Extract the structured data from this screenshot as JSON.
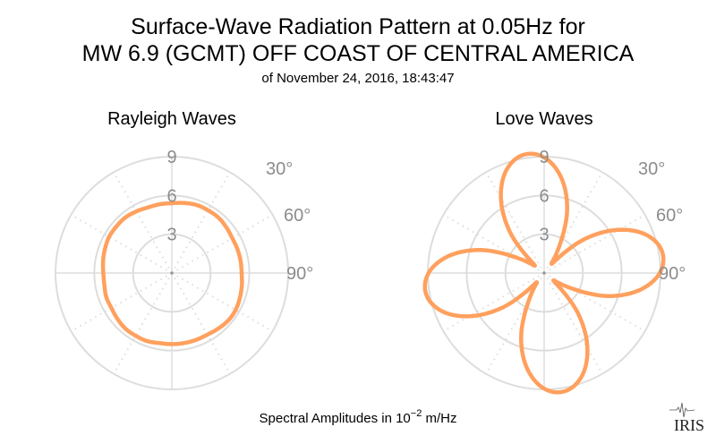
{
  "title_line1": "Surface-Wave Radiation Pattern at 0.05Hz for",
  "title_line2": "MW 6.9 (GCMT) OFF COAST OF CENTRAL AMERICA",
  "subtitle": "of November 24, 2016, 18:43:47",
  "footer": {
    "prefix": "Spectral Amplitudes in 10",
    "exponent": "−2",
    "suffix": " m/Hz"
  },
  "logo_text": "IRIS",
  "colors": {
    "trace": "#FFA05E",
    "grid": "#dddddd",
    "tick_text": "#8c8c8c"
  },
  "chart_data": [
    {
      "type": "polar-line",
      "title": "Rayleigh Waves",
      "radial_ticks": [
        "3",
        "6",
        "9"
      ],
      "radial_range": [
        0,
        9
      ],
      "angular_ticks": [
        "30°",
        "60°",
        "90°"
      ],
      "angle_direction": "clockwise from top",
      "azimuth_deg": [
        0,
        10,
        20,
        30,
        40,
        50,
        60,
        70,
        80,
        90,
        100,
        110,
        120,
        130,
        140,
        150,
        160,
        170,
        180,
        190,
        200,
        210,
        220,
        230,
        240,
        250,
        260,
        270,
        280,
        290,
        300,
        310,
        320,
        330,
        340,
        350
      ],
      "values": [
        5.4,
        5.5,
        5.6,
        5.6,
        5.6,
        5.5,
        5.4,
        5.4,
        5.4,
        5.4,
        5.5,
        5.6,
        5.7,
        5.7,
        5.6,
        5.5,
        5.5,
        5.5,
        5.5,
        5.5,
        5.6,
        5.6,
        5.6,
        5.5,
        5.4,
        5.4,
        5.3,
        5.3,
        5.4,
        5.5,
        5.6,
        5.6,
        5.6,
        5.5,
        5.4,
        5.4
      ]
    },
    {
      "type": "polar-line",
      "title": "Love Waves",
      "radial_ticks": [
        "3",
        "6",
        "9"
      ],
      "radial_range": [
        0,
        9
      ],
      "angular_ticks": [
        "30°",
        "60°",
        "90°"
      ],
      "angle_direction": "clockwise from top",
      "azimuth_deg": [
        0,
        10,
        20,
        30,
        40,
        50,
        60,
        70,
        80,
        90,
        100,
        110,
        120,
        130,
        140,
        150,
        160,
        170,
        180,
        190,
        200,
        210,
        220,
        230,
        240,
        250,
        260,
        270,
        280,
        290,
        300,
        310,
        320,
        330,
        340,
        350
      ],
      "values": [
        8.94,
        7.52,
        5.2,
        2.25,
        0.97,
        4.08,
        6.69,
        8.5,
        9.28,
        8.94,
        7.52,
        5.2,
        2.25,
        0.97,
        4.08,
        6.69,
        8.5,
        9.28,
        8.94,
        7.52,
        5.2,
        2.25,
        0.97,
        4.08,
        6.69,
        8.5,
        9.28,
        8.94,
        7.52,
        5.2,
        2.25,
        0.97,
        4.08,
        6.69,
        8.5,
        9.28
      ]
    }
  ]
}
